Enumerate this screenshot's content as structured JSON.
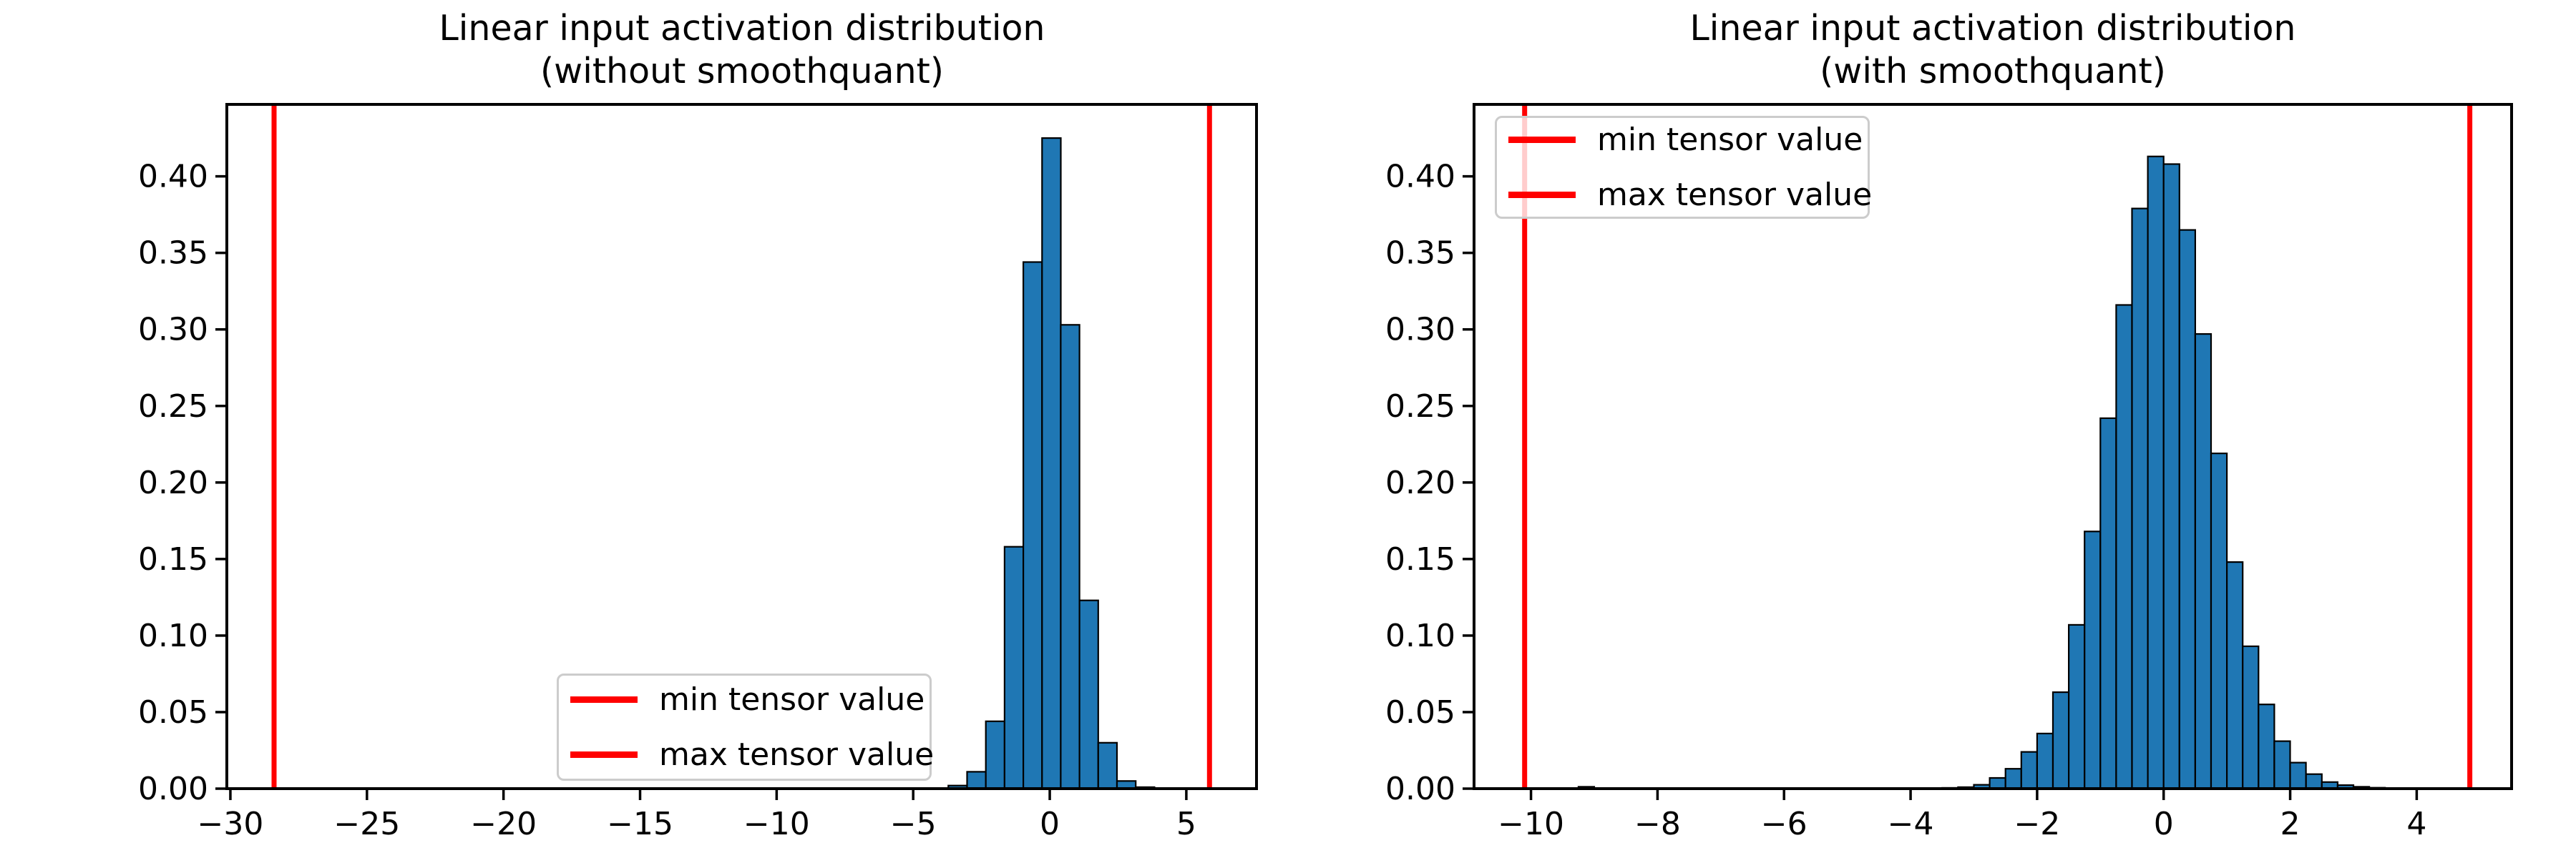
{
  "figure": {
    "background": "#ffffff",
    "colors": {
      "bar_fill": "#1f77b4",
      "bar_edge": "#000000",
      "vline": "#ff0000",
      "axis": "#000000",
      "text": "#000000",
      "legend_border": "#cccccc"
    }
  },
  "chart_data": [
    {
      "type": "bar",
      "title_line1": "Linear input activation distribution",
      "title_line2": "(without smoothquant)",
      "legend_labels": [
        "min tensor value",
        "max tensor value"
      ],
      "legend_position": "lower center inside",
      "grid": false,
      "xlim": [
        -30.13,
        7.57
      ],
      "ylim": [
        0,
        0.447
      ],
      "xticks": [
        -30,
        -25,
        -20,
        -15,
        -10,
        -5,
        0,
        5
      ],
      "yticks": [
        0.0,
        0.05,
        0.1,
        0.15,
        0.2,
        0.25,
        0.3,
        0.35,
        0.4
      ],
      "histogram": {
        "bin_start": -3.713,
        "bin_width": 0.686,
        "densities": [
          0.002,
          0.011,
          0.044,
          0.158,
          0.344,
          0.425,
          0.303,
          0.123,
          0.03,
          0.005,
          0.001
        ]
      },
      "extra_bins": [],
      "vlines": [
        {
          "name": "min tensor value",
          "x": -28.4
        },
        {
          "name": "max tensor value",
          "x": 5.85
        }
      ]
    },
    {
      "type": "bar",
      "title_line1": "Linear input activation distribution",
      "title_line2": "(with smoothquant)",
      "legend_labels": [
        "min tensor value",
        "max tensor value"
      ],
      "legend_position": "upper left inside",
      "grid": false,
      "xlim": [
        -10.9,
        5.5
      ],
      "ylim": [
        0,
        0.447
      ],
      "xticks": [
        -10,
        -8,
        -6,
        -4,
        -2,
        0,
        2,
        4
      ],
      "yticks": [
        0.0,
        0.05,
        0.1,
        0.15,
        0.2,
        0.25,
        0.3,
        0.35,
        0.4
      ],
      "histogram": {
        "bin_start": -3.5,
        "bin_width": 0.25,
        "densities": [
          0.0005,
          0.001,
          0.0025,
          0.007,
          0.013,
          0.024,
          0.036,
          0.063,
          0.107,
          0.168,
          0.242,
          0.316,
          0.379,
          0.413,
          0.408,
          0.365,
          0.297,
          0.219,
          0.148,
          0.093,
          0.055,
          0.031,
          0.017,
          0.0095,
          0.0043,
          0.0023,
          0.0012,
          0.0006
        ]
      },
      "extra_bins": [
        {
          "x0": -9.25,
          "x1": -9.0,
          "density": 0.0012
        }
      ],
      "vlines": [
        {
          "name": "min tensor value",
          "x": -10.1
        },
        {
          "name": "max tensor value",
          "x": 4.84
        }
      ]
    }
  ]
}
